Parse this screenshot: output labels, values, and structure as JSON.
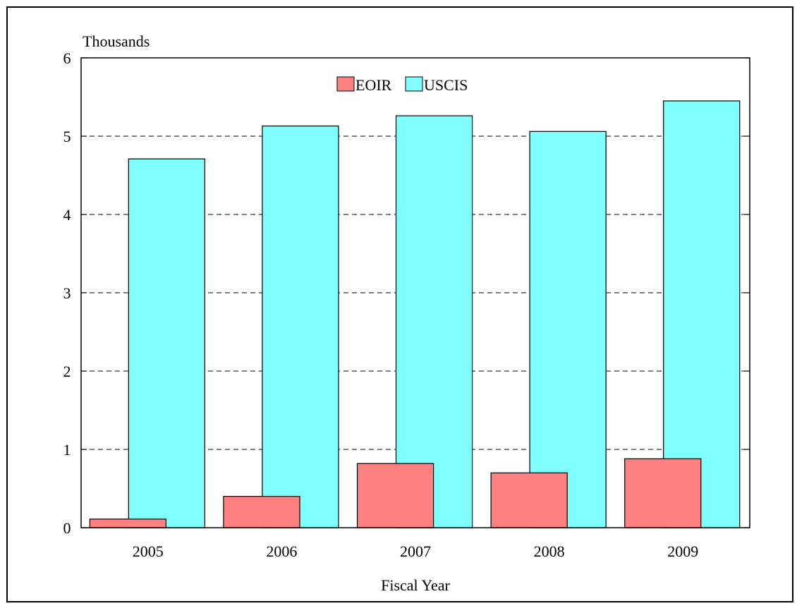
{
  "chart_data": {
    "type": "bar",
    "title": "",
    "unit_label": "Thousands",
    "xlabel": "Fiscal Year",
    "ylabel": "",
    "ylim": [
      0,
      6
    ],
    "yticks": [
      "0",
      "1",
      "2",
      "3",
      "4",
      "5",
      "6"
    ],
    "categories": [
      "2005",
      "2006",
      "2007",
      "2008",
      "2009"
    ],
    "series": [
      {
        "name": "EOIR",
        "color": "#ff8080",
        "values": [
          0.11,
          0.4,
          0.82,
          0.7,
          0.88
        ]
      },
      {
        "name": "USCIS",
        "color": "#80ffff",
        "values": [
          4.71,
          5.13,
          5.26,
          5.06,
          5.45
        ]
      }
    ],
    "grid": true,
    "legend": "top-center"
  }
}
